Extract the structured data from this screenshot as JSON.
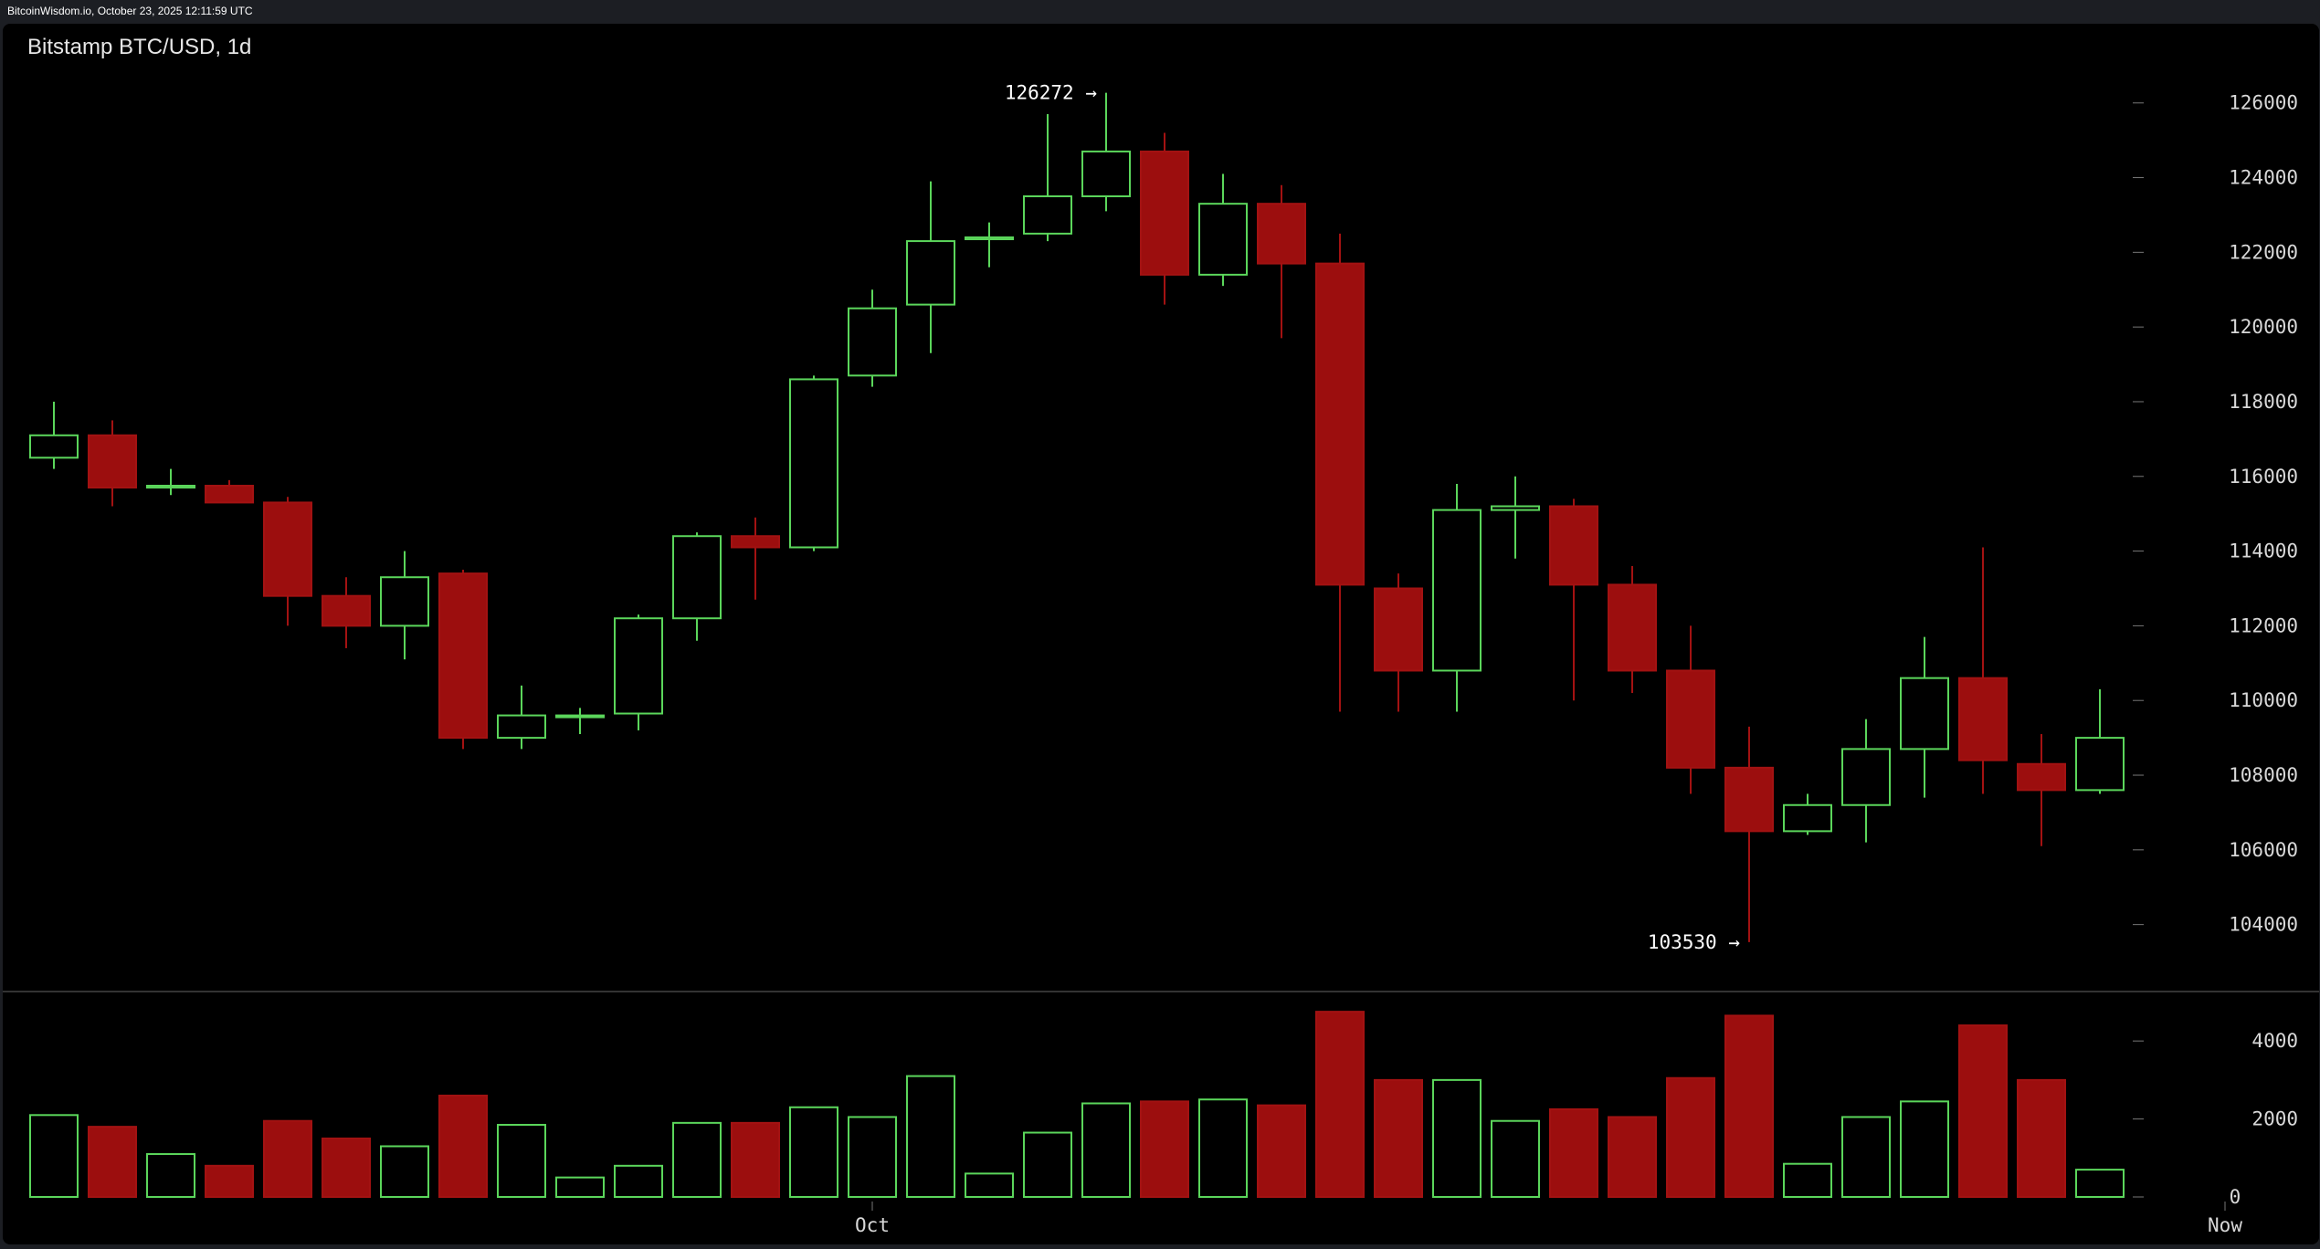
{
  "app": {
    "header_text": "BitcoinWisdom.io, October 23, 2025 12:11:59 UTC"
  },
  "chart_data": {
    "type": "candlestick",
    "title": "Bitstamp BTC/USD, 1d",
    "xlabel": "",
    "ylabel": "",
    "x_ticks": [
      "Oct",
      "Now"
    ],
    "price_ticks": [
      104000,
      106000,
      108000,
      110000,
      112000,
      114000,
      116000,
      118000,
      120000,
      122000,
      124000,
      126000
    ],
    "volume_ticks": [
      0,
      2000,
      4000
    ],
    "ylim_price": [
      102500,
      126800
    ],
    "ylim_volume": [
      0,
      4800
    ],
    "colors": {
      "up": "#5bd65b",
      "down": "#a31212",
      "down_fill": "#9c0e0e"
    },
    "annotations": [
      {
        "text": "126272 →",
        "value": 126272,
        "candle": 18
      },
      {
        "text": "103530 →",
        "value": 103530,
        "candle": 29
      }
    ],
    "candles": [
      {
        "open": 116500,
        "high": 118000,
        "low": 116200,
        "close": 117100,
        "volume": 2100
      },
      {
        "open": 117100,
        "high": 117500,
        "low": 115200,
        "close": 115700,
        "volume": 1800
      },
      {
        "open": 115700,
        "high": 116200,
        "low": 115500,
        "close": 115750,
        "volume": 1100
      },
      {
        "open": 115750,
        "high": 115900,
        "low": 115300,
        "close": 115300,
        "volume": 800
      },
      {
        "open": 115300,
        "high": 115450,
        "low": 112000,
        "close": 112800,
        "volume": 1950
      },
      {
        "open": 112800,
        "high": 113300,
        "low": 111400,
        "close": 112000,
        "volume": 1500
      },
      {
        "open": 112000,
        "high": 114000,
        "low": 111100,
        "close": 113300,
        "volume": 1300
      },
      {
        "open": 113400,
        "high": 113500,
        "low": 108700,
        "close": 109000,
        "volume": 2600
      },
      {
        "open": 109000,
        "high": 110400,
        "low": 108700,
        "close": 109600,
        "volume": 1850
      },
      {
        "open": 109600,
        "high": 109800,
        "low": 109100,
        "close": 109600,
        "volume": 500
      },
      {
        "open": 109650,
        "high": 112300,
        "low": 109200,
        "close": 112200,
        "volume": 800
      },
      {
        "open": 112200,
        "high": 114500,
        "low": 111600,
        "close": 114400,
        "volume": 1900
      },
      {
        "open": 114400,
        "high": 114900,
        "low": 112700,
        "close": 114100,
        "volume": 1900
      },
      {
        "open": 114100,
        "high": 118700,
        "low": 114000,
        "close": 118600,
        "volume": 2300
      },
      {
        "open": 118700,
        "high": 121000,
        "low": 118400,
        "close": 120500,
        "volume": 2050
      },
      {
        "open": 120600,
        "high": 123900,
        "low": 119300,
        "close": 122300,
        "volume": 3100
      },
      {
        "open": 122350,
        "high": 122800,
        "low": 121600,
        "close": 122400,
        "volume": 600
      },
      {
        "open": 122500,
        "high": 125700,
        "low": 122300,
        "close": 123500,
        "volume": 1650
      },
      {
        "open": 123500,
        "high": 126272,
        "low": 123100,
        "close": 124700,
        "volume": 2400
      },
      {
        "open": 124700,
        "high": 125200,
        "low": 120600,
        "close": 121400,
        "volume": 2450
      },
      {
        "open": 121400,
        "high": 124100,
        "low": 121100,
        "close": 123300,
        "volume": 2500
      },
      {
        "open": 123300,
        "high": 123800,
        "low": 119700,
        "close": 121700,
        "volume": 2350
      },
      {
        "open": 121700,
        "high": 122500,
        "low": 109700,
        "close": 113100,
        "volume": 4750
      },
      {
        "open": 113000,
        "high": 113400,
        "low": 109700,
        "close": 110800,
        "volume": 3000
      },
      {
        "open": 110800,
        "high": 115800,
        "low": 109700,
        "close": 115100,
        "volume": 3000
      },
      {
        "open": 115100,
        "high": 116000,
        "low": 113800,
        "close": 115200,
        "volume": 1950
      },
      {
        "open": 115200,
        "high": 115400,
        "low": 110000,
        "close": 113100,
        "volume": 2250
      },
      {
        "open": 113100,
        "high": 113600,
        "low": 110200,
        "close": 110800,
        "volume": 2050
      },
      {
        "open": 110800,
        "high": 112000,
        "low": 107500,
        "close": 108200,
        "volume": 3050
      },
      {
        "open": 108200,
        "high": 109300,
        "low": 103530,
        "close": 106500,
        "volume": 4650
      },
      {
        "open": 106500,
        "high": 107500,
        "low": 106400,
        "close": 107200,
        "volume": 850
      },
      {
        "open": 107200,
        "high": 109500,
        "low": 106200,
        "close": 108700,
        "volume": 2050
      },
      {
        "open": 108700,
        "high": 111700,
        "low": 107400,
        "close": 110600,
        "volume": 2450
      },
      {
        "open": 110600,
        "high": 114100,
        "low": 107500,
        "close": 108400,
        "volume": 4400
      },
      {
        "open": 108300,
        "high": 109100,
        "low": 106100,
        "close": 107600,
        "volume": 3000
      },
      {
        "open": 107600,
        "high": 110300,
        "low": 107500,
        "close": 109000,
        "volume": 700
      }
    ]
  }
}
